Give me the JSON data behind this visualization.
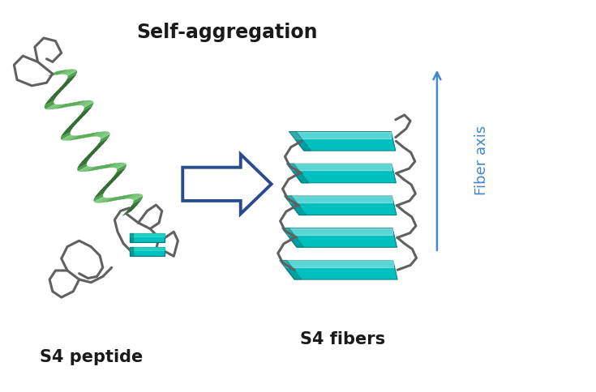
{
  "title": "Self-aggregation",
  "label_peptide": "S4 peptide",
  "label_fibers": "S4 fibers",
  "label_axis": "Fiber axis",
  "bg_color": "#ffffff",
  "text_color": "#1a1a1a",
  "arrow_color": "#2a4b8d",
  "helix_green": "#2e8b2e",
  "helix_green_dark": "#1a5c1a",
  "helix_green_light": "#5cb85c",
  "helix_cyan": "#00bfbf",
  "helix_cyan_light": "#40e0d0",
  "helix_cyan_dark": "#007a7a",
  "coil_color": "#606060",
  "fiber_axis_color": "#4488cc",
  "title_fontsize": 17,
  "label_fontsize": 15
}
